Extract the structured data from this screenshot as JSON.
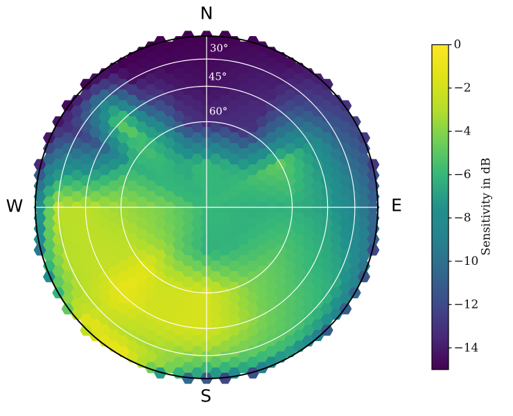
{
  "chart_data": {
    "type": "hexbin",
    "subtype": "polar_sky_sensitivity_map",
    "projection": "orthographic: r = R*cos(elevation), azimuth clockwise from North at top",
    "title": "",
    "compass": {
      "north": "N",
      "east": "E",
      "south": "S",
      "west": "W"
    },
    "elevation_rings": [
      {
        "label": "30°",
        "elevation_deg": 30
      },
      {
        "label": "45°",
        "elevation_deg": 45
      },
      {
        "label": "60°",
        "elevation_deg": 60
      }
    ],
    "grid_color": "#ffffff",
    "horizon_outline_color": "#000000",
    "background_color": "#ffffff",
    "colorbar": {
      "label": "Sensitivity in dB",
      "vmin": -15,
      "vmax": 0,
      "tick_values": [
        0,
        -2,
        -4,
        -6,
        -8,
        -10,
        -12,
        -14
      ],
      "tick_labels": [
        "0",
        "−2",
        "−4",
        "−6",
        "−8",
        "−10",
        "−12",
        "−14"
      ],
      "colormap": "viridis",
      "viridis_stops": [
        "#440154",
        "#482878",
        "#3e4a89",
        "#31688e",
        "#26828e",
        "#21918c",
        "#35b779",
        "#6ece58",
        "#b5de2b",
        "#dfe318",
        "#fde725"
      ]
    },
    "sensitivity_grid_db": {
      "azimuth_deg": [
        0,
        30,
        60,
        90,
        120,
        150,
        180,
        210,
        225,
        240,
        270,
        300,
        315,
        330,
        345
      ],
      "elevation_deg": [
        90,
        75,
        60,
        45,
        30,
        15,
        0
      ],
      "values_db": [
        [
          -6,
          -6,
          -6,
          -6,
          -6,
          -6,
          -6,
          -6,
          -6,
          -6,
          -6,
          -6,
          -6,
          -6,
          -6
        ],
        [
          -6,
          -6.2,
          -5.8,
          -6.3,
          -6.2,
          -6.2,
          -6.2,
          -5.2,
          -4.6,
          -4.3,
          -4.2,
          -6,
          -6.2,
          -6.5,
          -6
        ],
        [
          -13.5,
          -13,
          -4.8,
          -6.3,
          -5.2,
          -4.2,
          -1.8,
          -2.2,
          -1.3,
          -2.6,
          -3.5,
          -6.3,
          -5.5,
          -7.5,
          -12.5
        ],
        [
          -14.5,
          -13.5,
          -7.5,
          -7,
          -6,
          -4.5,
          -1.8,
          -2,
          -1,
          -2.5,
          -2.8,
          -11,
          -4.5,
          -12,
          -14
        ],
        [
          -14.8,
          -14,
          -11,
          -8.8,
          -6.5,
          -5,
          -4,
          -3,
          -2.5,
          -3,
          -2.8,
          -12.5,
          -9,
          -14.5,
          -14.8
        ],
        [
          -15,
          -14.5,
          -12,
          -10.5,
          -8.5,
          -6.5,
          -7,
          -1,
          -1,
          -4.5,
          -7,
          -13.5,
          -13.5,
          -15,
          -15
        ],
        [
          -15,
          -14.8,
          -12.5,
          -13,
          -11,
          -11,
          -12.5,
          -2,
          -2.5,
          -6.5,
          -12.5,
          -14.5,
          -14.8,
          -15,
          -15
        ]
      ]
    }
  }
}
